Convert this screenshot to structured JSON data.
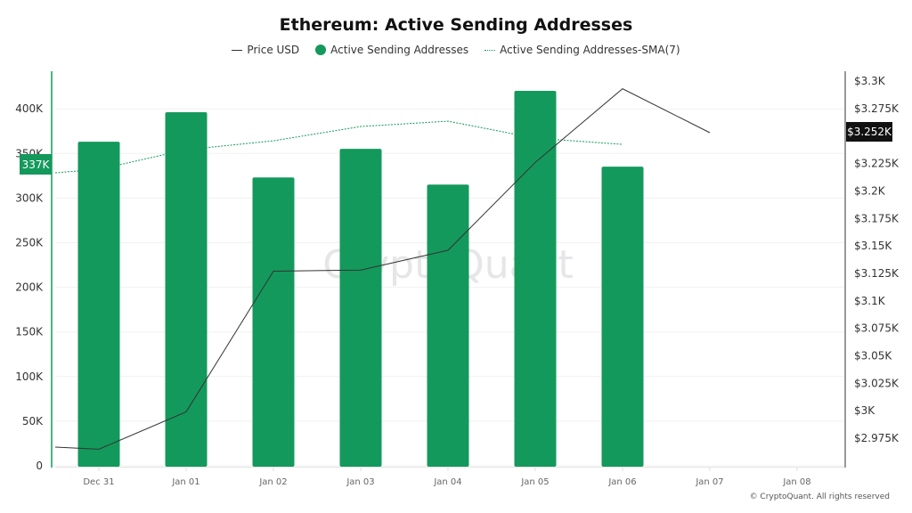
{
  "title": "Ethereum: Active Sending Addresses",
  "legend": [
    {
      "label": "Price USD",
      "type": "line",
      "color": "#333333"
    },
    {
      "label": "Active Sending Addresses",
      "type": "bar",
      "color": "#14995c"
    },
    {
      "label": "Active Sending Addresses-SMA(7)",
      "type": "dotted-line",
      "color": "#14995c"
    }
  ],
  "copyright": "© CryptoQuant. All rights reserved",
  "watermark": "CryptoQuant",
  "left_axis_badge": "337K",
  "right_axis_badge": "$3.252K",
  "chart_data": {
    "type": "bar",
    "title": "Ethereum: Active Sending Addresses",
    "categories": [
      "Dec 31",
      "Jan 01",
      "Jan 02",
      "Jan 03",
      "Jan 04",
      "Jan 05",
      "Jan 06",
      "Jan 07",
      "Jan 08"
    ],
    "series": [
      {
        "name": "Active Sending Addresses",
        "type": "bar",
        "axis": "left",
        "color": "#14995c",
        "values": [
          363000,
          396000,
          323000,
          355000,
          315000,
          420000,
          335000,
          null,
          null
        ]
      },
      {
        "name": "Active Sending Addresses-SMA(7)",
        "type": "line",
        "style": "dotted",
        "axis": "left",
        "color": "#14995c",
        "values": [
          332000,
          354000,
          364000,
          380000,
          386000,
          367000,
          360000,
          null,
          null
        ]
      },
      {
        "name": "Price USD",
        "type": "line",
        "axis": "right",
        "color": "#333333",
        "values": [
          2965,
          2999,
          3127,
          3128,
          3146,
          3226,
          3293,
          3253,
          null
        ]
      }
    ],
    "left_axis": {
      "ticks": [
        "0",
        "50K",
        "100K",
        "150K",
        "200K",
        "250K",
        "300K",
        "350K",
        "400K"
      ],
      "range": [
        0,
        440000
      ]
    },
    "right_axis": {
      "ticks": [
        "$2.975K",
        "$3K",
        "$3.025K",
        "$3.05K",
        "$3.075K",
        "$3.1K",
        "$3.125K",
        "$3.15K",
        "$3.175K",
        "$3.2K",
        "$3.225K",
        "$3.252K",
        "$3.275K",
        "$3.3K"
      ],
      "range": [
        2950,
        3310
      ]
    },
    "current_values": {
      "left": "337K",
      "right": "$3.252K"
    },
    "grid": true,
    "legend_position": "top"
  }
}
